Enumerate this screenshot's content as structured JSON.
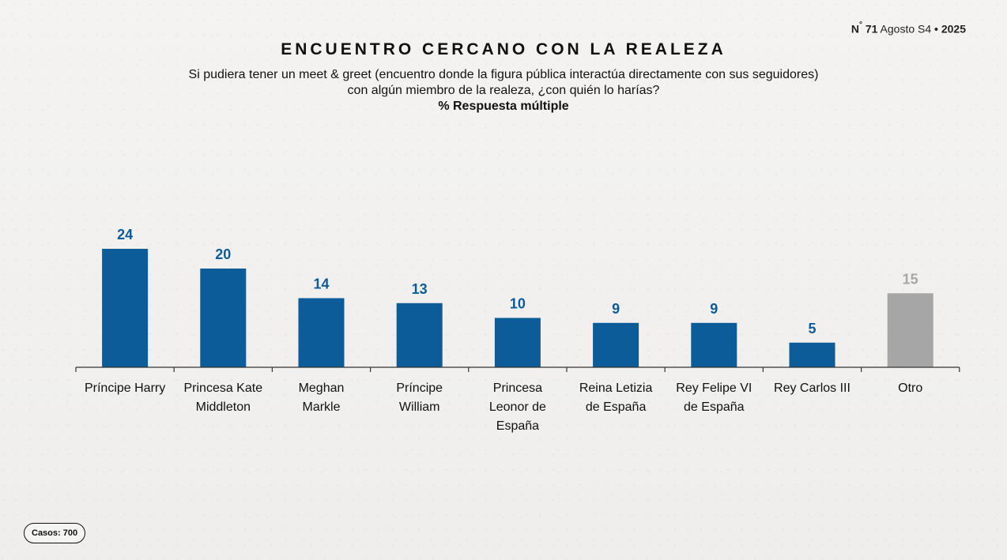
{
  "issue": {
    "prefix": "N",
    "degree": "°",
    "number": "71",
    "period": "Agosto S4",
    "separator": "•",
    "year": "2025"
  },
  "header": {
    "title": "ENCUENTRO CERCANO CON LA REALEZA",
    "question_line1": "Si pudiera tener un meet & greet (encuentro donde la figura pública interactúa directamente con sus seguidores)",
    "question_line2": "con algún miembro de la realeza, ¿con quién lo harías?",
    "note": "% Respuesta múltiple"
  },
  "colors": {
    "primary_bar": "#0b5c99",
    "other_bar": "#a6a6a6",
    "primary_label": "#0b5c99",
    "other_label": "#a6a6a6",
    "axis": "#333333"
  },
  "chart_data": {
    "type": "bar",
    "categories": [
      [
        "Príncipe Harry"
      ],
      [
        "Princesa Kate",
        "Middleton"
      ],
      [
        "Meghan",
        "Markle"
      ],
      [
        "Príncipe",
        "William"
      ],
      [
        "Princesa",
        "Leonor de",
        "España"
      ],
      [
        "Reina Letizia",
        "de España"
      ],
      [
        "Rey Felipe VI",
        "de España"
      ],
      [
        "Rey Carlos III"
      ],
      [
        "Otro"
      ]
    ],
    "values": [
      24,
      20,
      14,
      13,
      10,
      9,
      9,
      5,
      15
    ],
    "highlight": [
      false,
      false,
      false,
      false,
      false,
      false,
      false,
      false,
      true
    ],
    "ylim": [
      0,
      24
    ],
    "grid": false,
    "legend": "none"
  },
  "footer": {
    "cases": "Casos: 700"
  }
}
